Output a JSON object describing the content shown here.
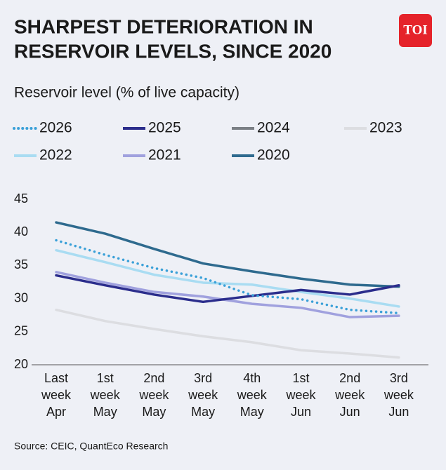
{
  "chart_data": {
    "type": "line",
    "title": [
      "SHARPEST DETERIORATION IN",
      "RESERVOIR LEVELS, SINCE 2020"
    ],
    "logo": "TOI",
    "subtitle": "Reservoir level (% of live capacity)",
    "source": "Source: CEIC, QuantEco Research",
    "categories": [
      "Last week Apr",
      "1st week May",
      "2nd week May",
      "3rd week May",
      "4th week May",
      "1st week Jun",
      "2nd week Jun",
      "3rd week Jun"
    ],
    "ylim": [
      20,
      45
    ],
    "yticks": [
      20,
      25,
      30,
      35,
      40,
      45
    ],
    "grid": false,
    "series": [
      {
        "name": "2026",
        "color": "#3aa0d8",
        "dash": "dotted",
        "values": [
          38.8,
          36.6,
          34.6,
          33.1,
          30.5,
          29.9,
          28.3,
          27.8
        ]
      },
      {
        "name": "2025",
        "color": "#2b2d8c",
        "values": [
          33.5,
          32.0,
          30.6,
          29.5,
          30.4,
          31.3,
          30.6,
          32.0
        ]
      },
      {
        "name": "2024",
        "color": "#7a7f85",
        "values": [
          null,
          null,
          null,
          null,
          null,
          null,
          null,
          null
        ]
      },
      {
        "name": "2023",
        "color": "#dcdde1",
        "values": [
          28.3,
          26.6,
          25.4,
          24.3,
          23.4,
          22.2,
          21.7,
          21.1
        ]
      },
      {
        "name": "2022",
        "color": "#a9dcf2",
        "values": [
          37.3,
          35.5,
          33.6,
          32.4,
          32.1,
          31.0,
          30.0,
          28.8
        ]
      },
      {
        "name": "2021",
        "color": "#a0a1de",
        "values": [
          34.0,
          32.4,
          31.0,
          30.3,
          29.2,
          28.6,
          27.2,
          27.4
        ]
      },
      {
        "name": "2020",
        "color": "#2e6a8e",
        "values": [
          41.5,
          39.8,
          37.5,
          35.3,
          34.1,
          33.0,
          32.1,
          31.8
        ]
      }
    ]
  }
}
